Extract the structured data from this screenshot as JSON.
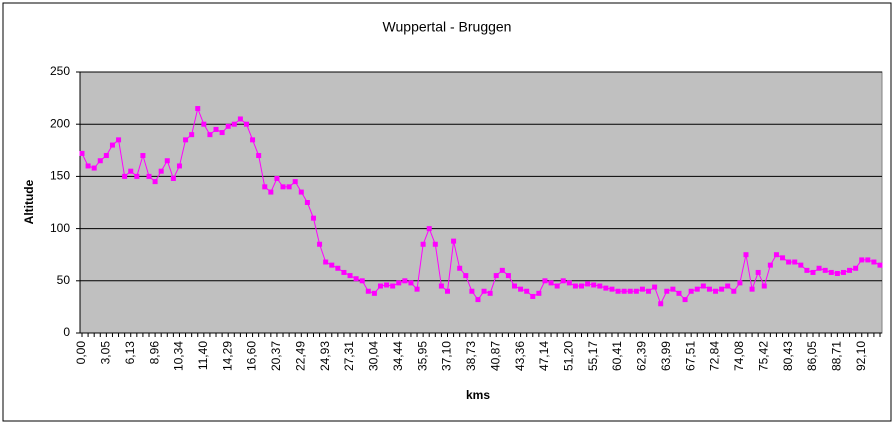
{
  "chart_data": {
    "type": "line",
    "title": "Wuppertal - Bruggen",
    "xlabel": "kms",
    "ylabel": "Altitude",
    "categories": [
      "0,00",
      null,
      null,
      null,
      "3,05",
      null,
      null,
      null,
      "6,13",
      null,
      null,
      null,
      "8,96",
      null,
      null,
      null,
      "10,34",
      null,
      null,
      null,
      "11,40",
      null,
      null,
      null,
      "14,29",
      null,
      null,
      null,
      "16,60",
      null,
      null,
      null,
      "20,37",
      null,
      null,
      null,
      "22,49",
      null,
      null,
      null,
      "24,93",
      null,
      null,
      null,
      "27,31",
      null,
      null,
      null,
      "30,04",
      null,
      null,
      null,
      "34,44",
      null,
      null,
      null,
      "35,95",
      null,
      null,
      null,
      "37,10",
      null,
      null,
      null,
      "38,73",
      null,
      null,
      null,
      "40,87",
      null,
      null,
      null,
      "43,36",
      null,
      null,
      null,
      "47,14",
      null,
      null,
      null,
      "51,20",
      null,
      null,
      null,
      "55,17",
      null,
      null,
      null,
      "60,41",
      null,
      null,
      null,
      "62,39",
      null,
      null,
      null,
      "63,99",
      null,
      null,
      null,
      "67,51",
      null,
      null,
      null,
      "72,84",
      null,
      null,
      null,
      "74,08",
      null,
      null,
      null,
      "75,42",
      null,
      null,
      null,
      "80,43",
      null,
      null,
      null,
      "86,05",
      null,
      null,
      null,
      "88,71",
      null,
      null,
      null,
      "92,10",
      null,
      null,
      null
    ],
    "values": [
      172,
      160,
      158,
      165,
      170,
      180,
      185,
      150,
      155,
      150,
      170,
      150,
      145,
      155,
      165,
      148,
      160,
      185,
      190,
      215,
      200,
      190,
      195,
      192,
      198,
      200,
      205,
      200,
      185,
      170,
      140,
      135,
      148,
      140,
      140,
      145,
      135,
      125,
      110,
      85,
      68,
      65,
      62,
      58,
      55,
      52,
      50,
      40,
      38,
      45,
      46,
      45,
      48,
      50,
      48,
      42,
      85,
      100,
      85,
      45,
      40,
      88,
      62,
      55,
      40,
      32,
      40,
      38,
      55,
      60,
      55,
      45,
      42,
      40,
      35,
      38,
      50,
      48,
      45,
      50,
      48,
      45,
      45,
      47,
      46,
      45,
      43,
      42,
      40,
      40,
      40,
      40,
      42,
      40,
      44,
      28,
      40,
      42,
      38,
      32,
      40,
      42,
      45,
      42,
      40,
      42,
      45,
      40,
      48,
      75,
      42,
      58,
      45,
      65,
      75,
      72,
      68,
      68,
      65,
      60,
      58,
      62,
      60,
      58,
      57,
      58,
      60,
      62,
      70,
      70,
      68,
      65
    ],
    "color": "#ff00ff",
    "ylim": [
      0,
      250
    ],
    "yticks": [
      0,
      50,
      100,
      150,
      200,
      250
    ],
    "grid": true,
    "plot_background": "#c0c0c0"
  }
}
